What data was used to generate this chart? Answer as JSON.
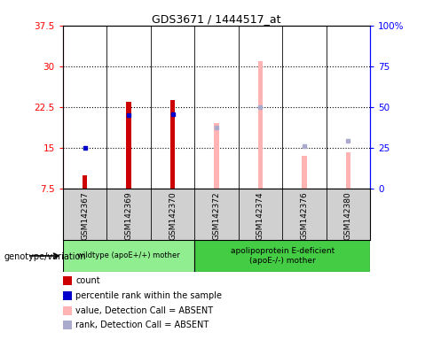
{
  "title": "GDS3671 / 1444517_at",
  "samples": [
    "GSM142367",
    "GSM142369",
    "GSM142370",
    "GSM142372",
    "GSM142374",
    "GSM142376",
    "GSM142380"
  ],
  "ylim_left": [
    7.5,
    37.5
  ],
  "ylim_right": [
    0,
    100
  ],
  "yticks_left": [
    7.5,
    15.0,
    22.5,
    30.0,
    37.5
  ],
  "ytick_labels_left": [
    "7.5",
    "15",
    "22.5",
    "30",
    "37.5"
  ],
  "yticks_right": [
    0,
    25,
    50,
    75,
    100
  ],
  "ytick_labels_right": [
    "0",
    "25",
    "50",
    "75",
    "100%"
  ],
  "count_bars": [
    {
      "x": 0,
      "value": 10.0
    },
    {
      "x": 1,
      "value": 23.5
    },
    {
      "x": 2,
      "value": 23.8
    }
  ],
  "rank_markers": [
    {
      "x": 0,
      "value": 15.0
    },
    {
      "x": 1,
      "value": 21.0
    },
    {
      "x": 2,
      "value": 21.2
    }
  ],
  "absent_value_bars": [
    {
      "x": 3,
      "value": 19.5
    },
    {
      "x": 4,
      "value": 31.0
    },
    {
      "x": 5,
      "value": 13.5
    },
    {
      "x": 6,
      "value": 14.2
    }
  ],
  "absent_rank_markers": [
    {
      "x": 3,
      "value": 18.7
    },
    {
      "x": 4,
      "value": 22.5
    },
    {
      "x": 5,
      "value": 15.3
    },
    {
      "x": 6,
      "value": 16.3
    }
  ],
  "bar_width": 0.12,
  "count_color": "#cc0000",
  "rank_color": "#0000cc",
  "absent_value_color": "#ffb3b3",
  "absent_rank_color": "#aaaacc",
  "plot_bg": "#ffffff",
  "tick_bg": "#d0d0d0",
  "group1_label": "wildtype (apoE+/+) mother",
  "group1_indices": [
    0,
    1,
    2
  ],
  "group2_label": "apolipoprotein E-deficient\n(apoE-/-) mother",
  "group2_indices": [
    3,
    4,
    5,
    6
  ],
  "group1_color": "#90ee90",
  "group2_color": "#44cc44",
  "legend_items": [
    {
      "label": "count",
      "color": "#cc0000"
    },
    {
      "label": "percentile rank within the sample",
      "color": "#0000cc"
    },
    {
      "label": "value, Detection Call = ABSENT",
      "color": "#ffb3b3"
    },
    {
      "label": "rank, Detection Call = ABSENT",
      "color": "#aaaacc"
    }
  ]
}
